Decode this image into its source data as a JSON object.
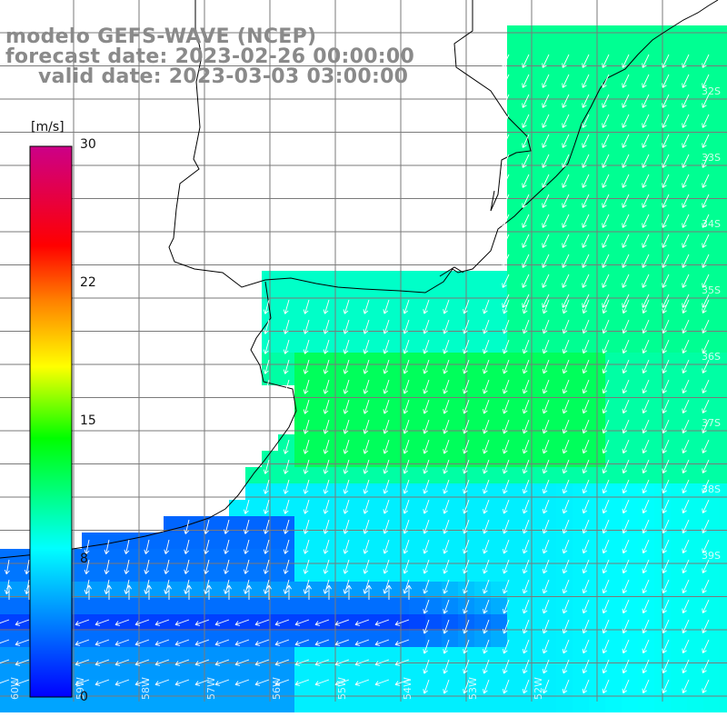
{
  "header": {
    "model": "modelo GEFS-WAVE (NCEP)",
    "forecast_date": "forecast date: 2023-02-26 00:00:00",
    "valid_date": "valid date: 2023-03-03 03:00:00"
  },
  "colorbar": {
    "unit": "[m/s]",
    "ticks": [
      "30",
      "22",
      "15",
      "8",
      "0"
    ],
    "stops": [
      "#0000ff",
      "#00ffff",
      "#00ff00",
      "#ffff00",
      "#ff8000",
      "#ff0000",
      "#cc0088"
    ]
  },
  "map": {
    "lat_labels": [
      "32S",
      "33S",
      "34S",
      "35S",
      "36S",
      "37S",
      "38S",
      "39S"
    ],
    "lon_labels": [
      "60W",
      "59W",
      "58W",
      "57W",
      "56W",
      "55W",
      "54W",
      "53W",
      "52W"
    ],
    "colors": {
      "land": "#ffffff",
      "coast": "#000000",
      "grid": "#7a7a7a",
      "arrows": "#ffffff"
    }
  }
}
